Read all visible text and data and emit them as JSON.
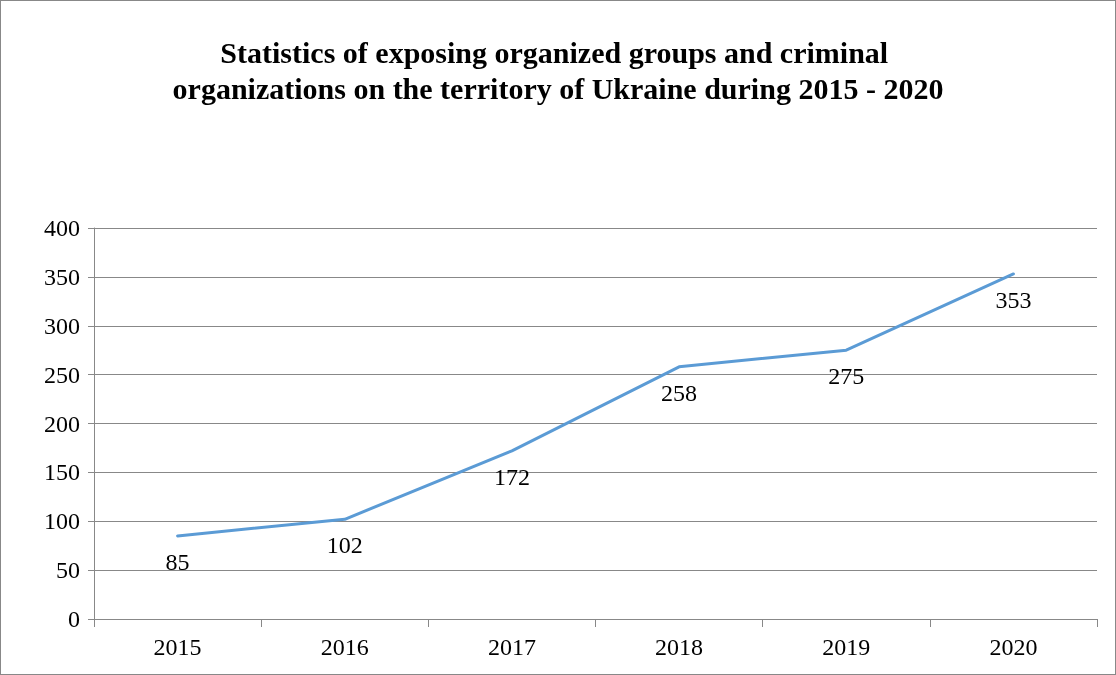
{
  "chart_data": {
    "type": "line",
    "title": "Statistics of exposing organized groups and criminal organizations on the territory of Ukraine during 2015 - 2020",
    "categories": [
      "2015",
      "2016",
      "2017",
      "2018",
      "2019",
      "2020"
    ],
    "series": [
      {
        "color": "#5b9bd5",
        "values": [
          85,
          102,
          172,
          258,
          275,
          353
        ]
      }
    ],
    "ylim": [
      0,
      400
    ],
    "yticks": [
      0,
      50,
      100,
      150,
      200,
      250,
      300,
      350,
      400
    ],
    "grid": "y",
    "marker": "none",
    "line_style": "solid",
    "data_labels": true
  }
}
